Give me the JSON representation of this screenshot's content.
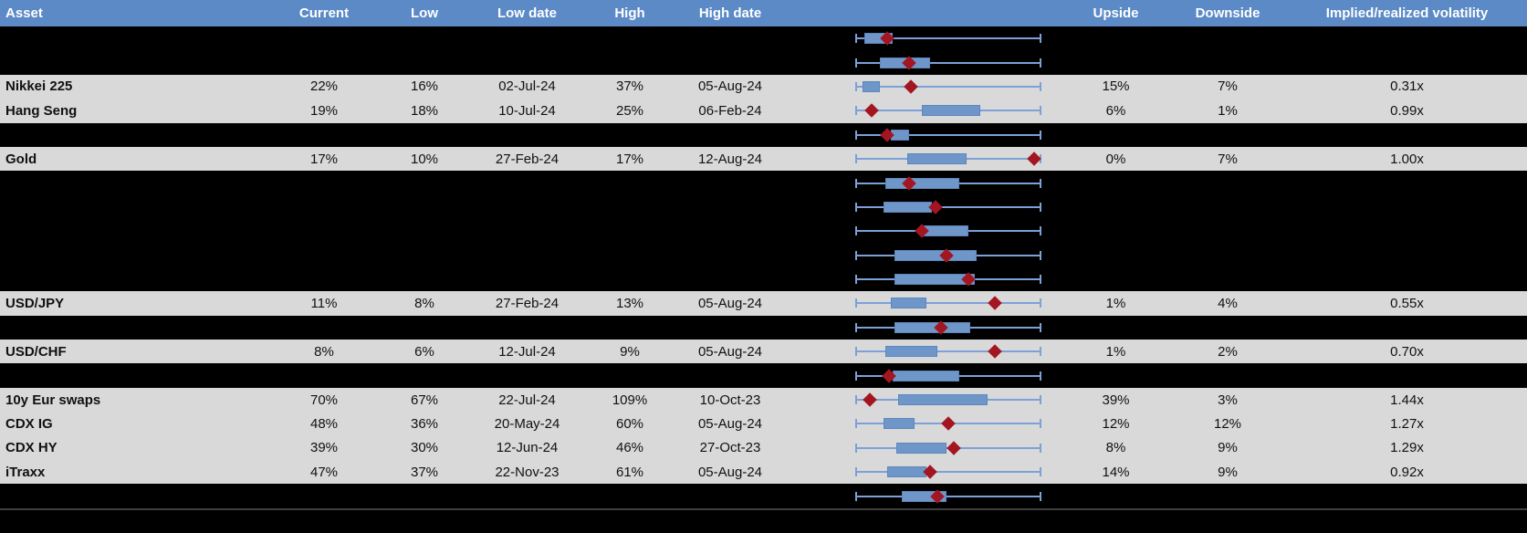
{
  "colors": {
    "header_bg": "#5B8AC6",
    "data_row_bg": "#D9D9D9",
    "hidden_row_bg": "#000000",
    "whisker_blue": "#7CA1D8",
    "box_blue": "#6F96C8",
    "marker_red": "#A31621",
    "separator_gray": "#404040",
    "header_text": "#FFFFFF"
  },
  "chart_data": {
    "type": "table",
    "subtype": "table-with-embedded-boxplot-per-row",
    "title": "",
    "columns": [
      "Asset",
      "Current",
      "Low",
      "Low date",
      "High",
      "High date",
      "Upside",
      "Downside",
      "Implied/realized volatility"
    ],
    "boxplot_note": "Each row shows a horizontal range whisker (full low-high period range, 0-100%), a blue interquartile box and a dark-red diamond marker; positions below are percent of whisker span. Rows with hidden=true are blacked-out rows where only the boxplot is visible.",
    "legend_position": "none",
    "grid": false,
    "rows": [
      {
        "hidden": true,
        "boxplot": {
          "box_start_pct": 5,
          "box_end_pct": 20,
          "marker_pct": 17
        }
      },
      {
        "hidden": true,
        "boxplot": {
          "box_start_pct": 13,
          "box_end_pct": 40,
          "marker_pct": 29
        }
      },
      {
        "hidden": false,
        "asset": "Nikkei 225",
        "current": "22%",
        "low": "16%",
        "low_date": "02-Jul-24",
        "high": "37%",
        "high_date": "05-Aug-24",
        "upside": "15%",
        "downside": "7%",
        "ivol": "0.31x",
        "boxplot": {
          "box_start_pct": 4,
          "box_end_pct": 13,
          "marker_pct": 30
        }
      },
      {
        "hidden": false,
        "asset": "Hang Seng",
        "current": "19%",
        "low": "18%",
        "low_date": "10-Jul-24",
        "high": "25%",
        "high_date": "06-Feb-24",
        "upside": "6%",
        "downside": "1%",
        "ivol": "0.99x",
        "boxplot": {
          "box_start_pct": 36,
          "box_end_pct": 67,
          "marker_pct": 9
        }
      },
      {
        "hidden": true,
        "boxplot": {
          "box_start_pct": 19,
          "box_end_pct": 29,
          "marker_pct": 17
        }
      },
      {
        "hidden": false,
        "asset": "Gold",
        "current": "17%",
        "low": "10%",
        "low_date": "27-Feb-24",
        "high": "17%",
        "high_date": "12-Aug-24",
        "upside": "0%",
        "downside": "7%",
        "ivol": "1.00x",
        "boxplot": {
          "box_start_pct": 28,
          "box_end_pct": 60,
          "marker_pct": 96
        }
      },
      {
        "hidden": true,
        "boxplot": {
          "box_start_pct": 16,
          "box_end_pct": 56,
          "marker_pct": 29
        }
      },
      {
        "hidden": true,
        "boxplot": {
          "box_start_pct": 15,
          "box_end_pct": 41,
          "marker_pct": 43
        }
      },
      {
        "hidden": true,
        "boxplot": {
          "box_start_pct": 37,
          "box_end_pct": 61,
          "marker_pct": 36
        }
      },
      {
        "hidden": true,
        "boxplot": {
          "box_start_pct": 21,
          "box_end_pct": 65,
          "marker_pct": 49
        }
      },
      {
        "hidden": true,
        "boxplot": {
          "box_start_pct": 21,
          "box_end_pct": 64,
          "marker_pct": 61
        }
      },
      {
        "hidden": false,
        "asset": "USD/JPY",
        "current": "11%",
        "low": "8%",
        "low_date": "27-Feb-24",
        "high": "13%",
        "high_date": "05-Aug-24",
        "upside": "1%",
        "downside": "4%",
        "ivol": "0.55x",
        "boxplot": {
          "box_start_pct": 19,
          "box_end_pct": 38,
          "marker_pct": 75
        }
      },
      {
        "hidden": true,
        "boxplot": {
          "box_start_pct": 21,
          "box_end_pct": 62,
          "marker_pct": 46
        }
      },
      {
        "hidden": false,
        "asset": "USD/CHF",
        "current": "8%",
        "low": "6%",
        "low_date": "12-Jul-24",
        "high": "9%",
        "high_date": "05-Aug-24",
        "upside": "1%",
        "downside": "2%",
        "ivol": "0.70x",
        "boxplot": {
          "box_start_pct": 16,
          "box_end_pct": 44,
          "marker_pct": 75
        }
      },
      {
        "hidden": true,
        "boxplot": {
          "box_start_pct": 20,
          "box_end_pct": 56,
          "marker_pct": 18
        }
      },
      {
        "hidden": false,
        "asset": "10y Eur swaps",
        "current": "70%",
        "low": "67%",
        "low_date": "22-Jul-24",
        "high": "109%",
        "high_date": "10-Oct-23",
        "upside": "39%",
        "downside": "3%",
        "ivol": "1.44x",
        "boxplot": {
          "box_start_pct": 23,
          "box_end_pct": 71,
          "marker_pct": 8
        }
      },
      {
        "hidden": false,
        "asset": "CDX IG",
        "current": "48%",
        "low": "36%",
        "low_date": "20-May-24",
        "high": "60%",
        "high_date": "05-Aug-24",
        "upside": "12%",
        "downside": "12%",
        "ivol": "1.27x",
        "boxplot": {
          "box_start_pct": 15,
          "box_end_pct": 32,
          "marker_pct": 50
        }
      },
      {
        "hidden": false,
        "asset": "CDX HY",
        "current": "39%",
        "low": "30%",
        "low_date": "12-Jun-24",
        "high": "46%",
        "high_date": "27-Oct-23",
        "upside": "8%",
        "downside": "9%",
        "ivol": "1.29x",
        "boxplot": {
          "box_start_pct": 22,
          "box_end_pct": 49,
          "marker_pct": 53
        }
      },
      {
        "hidden": false,
        "asset": "iTraxx",
        "current": "47%",
        "low": "37%",
        "low_date": "22-Nov-23",
        "high": "61%",
        "high_date": "05-Aug-24",
        "upside": "14%",
        "downside": "9%",
        "ivol": "0.92x",
        "boxplot": {
          "box_start_pct": 17,
          "box_end_pct": 38,
          "marker_pct": 40
        }
      },
      {
        "hidden": true,
        "boxplot": {
          "box_start_pct": 25,
          "box_end_pct": 49,
          "marker_pct": 44
        }
      },
      {
        "hidden": true,
        "separator_top": true,
        "boxplot": null
      }
    ]
  }
}
